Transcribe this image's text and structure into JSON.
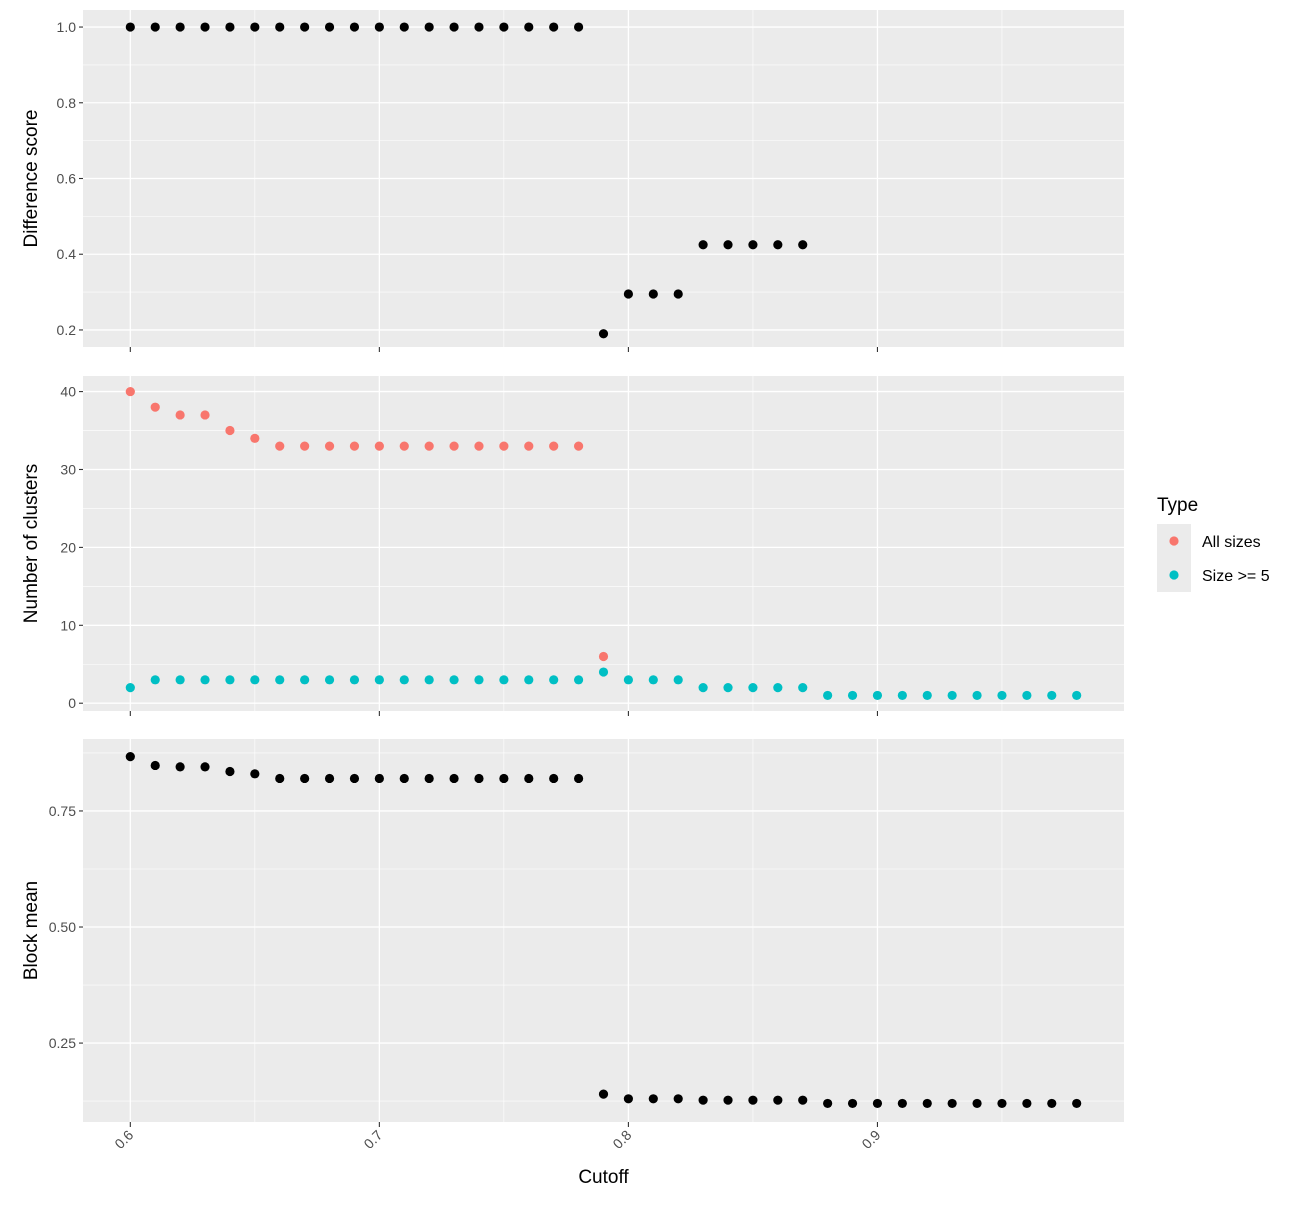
{
  "chart_data": {
    "type": "scatter",
    "xlabel": "Cutoff",
    "xlim": [
      0.581,
      0.999
    ],
    "x_ticks": [
      0.6,
      0.7,
      0.8,
      0.9
    ],
    "x_tick_labels": [
      "0.6",
      "0.7",
      "0.8",
      "0.9"
    ],
    "grid": true,
    "legend": {
      "title": "Type",
      "position": "right",
      "entries": [
        {
          "label": "All sizes",
          "color": "#F8766D"
        },
        {
          "label": "Size >= 5",
          "color": "#00BFC4"
        }
      ]
    },
    "panels": [
      {
        "ylabel": "Difference score",
        "ylim": [
          0.155,
          1.045
        ],
        "y_ticks": [
          0.2,
          0.4,
          0.6,
          0.8,
          1.0
        ],
        "y_tick_labels": [
          "0.2",
          "0.4",
          "0.6",
          "0.8",
          "1.0"
        ],
        "series": [
          {
            "color": "#000000",
            "x": [
              0.6,
              0.61,
              0.62,
              0.63,
              0.64,
              0.65,
              0.66,
              0.67,
              0.68,
              0.69,
              0.7,
              0.71,
              0.72,
              0.73,
              0.74,
              0.75,
              0.76,
              0.77,
              0.78,
              0.79,
              0.8,
              0.81,
              0.82,
              0.83,
              0.84,
              0.85,
              0.86,
              0.87
            ],
            "y": [
              1.0,
              1.0,
              1.0,
              1.0,
              1.0,
              1.0,
              1.0,
              1.0,
              1.0,
              1.0,
              1.0,
              1.0,
              1.0,
              1.0,
              1.0,
              1.0,
              1.0,
              1.0,
              1.0,
              0.19,
              0.295,
              0.295,
              0.295,
              0.425,
              0.425,
              0.425,
              0.425,
              0.425
            ]
          }
        ]
      },
      {
        "ylabel": "Number of clusters",
        "ylim": [
          -1.0,
          42.0
        ],
        "y_ticks": [
          0,
          10,
          20,
          30,
          40
        ],
        "y_tick_labels": [
          "0",
          "10",
          "20",
          "30",
          "40"
        ],
        "series": [
          {
            "name": "All sizes",
            "color": "#F8766D",
            "x": [
              0.6,
              0.61,
              0.62,
              0.63,
              0.64,
              0.65,
              0.66,
              0.67,
              0.68,
              0.69,
              0.7,
              0.71,
              0.72,
              0.73,
              0.74,
              0.75,
              0.76,
              0.77,
              0.78,
              0.79
            ],
            "y": [
              40,
              38,
              37,
              37,
              35,
              34,
              33,
              33,
              33,
              33,
              33,
              33,
              33,
              33,
              33,
              33,
              33,
              33,
              33,
              6
            ]
          },
          {
            "name": "Size >= 5",
            "color": "#00BFC4",
            "x": [
              0.6,
              0.61,
              0.62,
              0.63,
              0.64,
              0.65,
              0.66,
              0.67,
              0.68,
              0.69,
              0.7,
              0.71,
              0.72,
              0.73,
              0.74,
              0.75,
              0.76,
              0.77,
              0.78,
              0.79,
              0.8,
              0.81,
              0.82,
              0.83,
              0.84,
              0.85,
              0.86,
              0.87,
              0.88,
              0.89,
              0.9,
              0.91,
              0.92,
              0.93,
              0.94,
              0.95,
              0.96,
              0.97,
              0.98
            ],
            "y": [
              2,
              3,
              3,
              3,
              3,
              3,
              3,
              3,
              3,
              3,
              3,
              3,
              3,
              3,
              3,
              3,
              3,
              3,
              3,
              4,
              3,
              3,
              3,
              2,
              2,
              2,
              2,
              2,
              1,
              1,
              1,
              1,
              1,
              1,
              1,
              1,
              1,
              1,
              1
            ]
          }
        ]
      },
      {
        "ylabel": "Block mean",
        "ylim": [
          0.08,
          0.905
        ],
        "y_ticks": [
          0.25,
          0.5,
          0.75
        ],
        "y_tick_labels": [
          "0.25",
          "0.50",
          "0.75"
        ],
        "series": [
          {
            "color": "#000000",
            "x": [
              0.6,
              0.61,
              0.62,
              0.63,
              0.64,
              0.65,
              0.66,
              0.67,
              0.68,
              0.69,
              0.7,
              0.71,
              0.72,
              0.73,
              0.74,
              0.75,
              0.76,
              0.77,
              0.78,
              0.79,
              0.8,
              0.81,
              0.82,
              0.83,
              0.84,
              0.85,
              0.86,
              0.87,
              0.88,
              0.89,
              0.9,
              0.91,
              0.92,
              0.93,
              0.94,
              0.95,
              0.96,
              0.97,
              0.98
            ],
            "y": [
              0.867,
              0.848,
              0.845,
              0.845,
              0.835,
              0.83,
              0.82,
              0.82,
              0.82,
              0.82,
              0.82,
              0.82,
              0.82,
              0.82,
              0.82,
              0.82,
              0.82,
              0.82,
              0.82,
              0.14,
              0.13,
              0.13,
              0.13,
              0.127,
              0.127,
              0.127,
              0.127,
              0.127,
              0.12,
              0.12,
              0.12,
              0.12,
              0.12,
              0.12,
              0.12,
              0.12,
              0.12,
              0.12,
              0.12
            ]
          }
        ]
      }
    ]
  }
}
